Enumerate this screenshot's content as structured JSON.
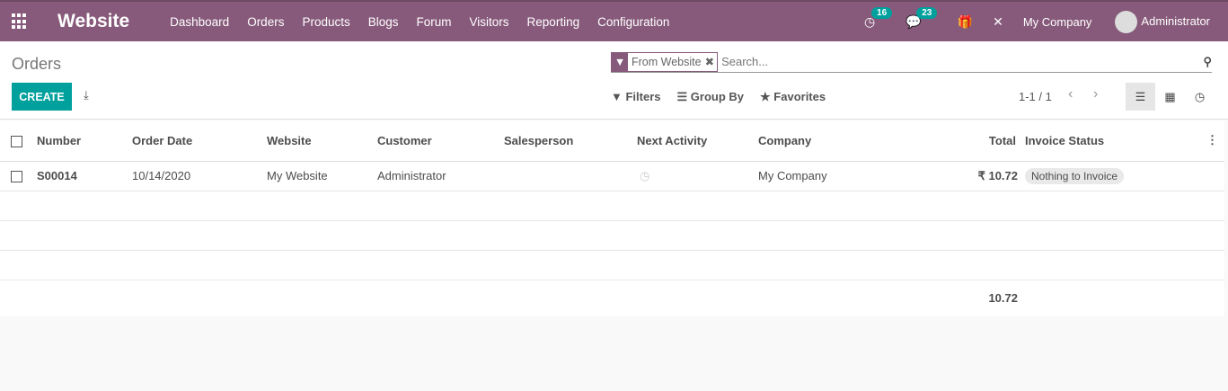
{
  "nav": {
    "app": "Website",
    "menu": [
      "Dashboard",
      "Orders",
      "Products",
      "Blogs",
      "Forum",
      "Visitors",
      "Reporting",
      "Configuration"
    ],
    "activity_count": "16",
    "message_count": "23",
    "company": "My Company",
    "user": "Administrator"
  },
  "cp": {
    "title": "Orders",
    "create": "CREATE",
    "facet": "From Website",
    "search_placeholder": "Search...",
    "filters": "Filters",
    "group_by": "Group By",
    "favorites": "Favorites",
    "pager": "1-1 / 1"
  },
  "table": {
    "columns": [
      "Number",
      "Order Date",
      "Website",
      "Customer",
      "Salesperson",
      "Next Activity",
      "Company",
      "Total",
      "Invoice Status"
    ],
    "rows": [
      {
        "number": "S00014",
        "date": "10/14/2020",
        "website": "My Website",
        "customer": "Administrator",
        "salesperson": "",
        "company": "My Company",
        "total": "₹ 10.72",
        "status": "Nothing to Invoice"
      }
    ],
    "sum_total": "10.72"
  },
  "colors": {
    "primary": "#875a7b",
    "accent": "#00a09d"
  }
}
